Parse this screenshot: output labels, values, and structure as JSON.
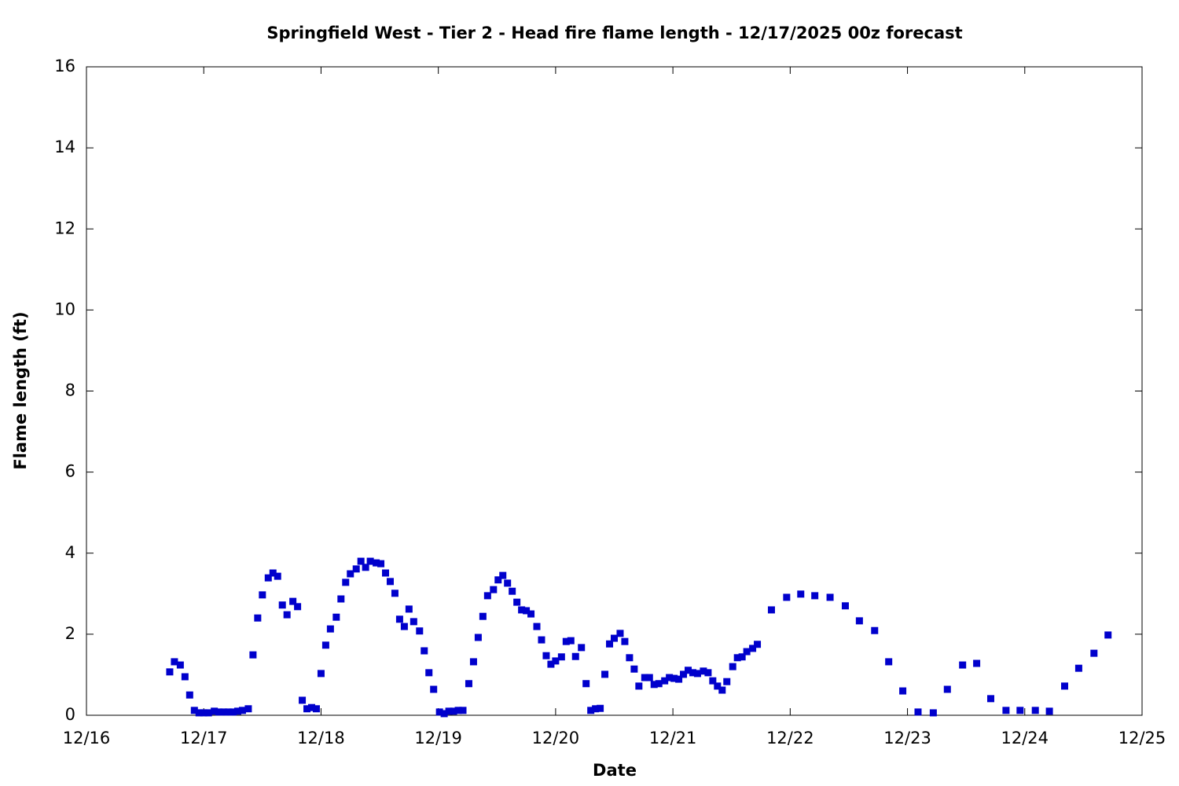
{
  "chart_data": {
    "type": "scatter",
    "title": "Springfield West - Tier 2 - Head fire flame length - 12/17/2025 00z forecast",
    "x_label": "Date",
    "y_label": "Flame length (ft)",
    "color": "#0000cc",
    "x": [
      16.71,
      16.75,
      16.8,
      16.84,
      16.88,
      16.92,
      16.96,
      17.0,
      17.04,
      17.09,
      17.13,
      17.17,
      17.21,
      17.25,
      17.29,
      17.33,
      17.38,
      17.42,
      17.46,
      17.5,
      17.55,
      17.59,
      17.63,
      17.67,
      17.71,
      17.76,
      17.8,
      17.84,
      17.88,
      17.92,
      17.96,
      18.0,
      18.04,
      18.08,
      18.13,
      18.17,
      18.21,
      18.25,
      18.3,
      18.34,
      18.38,
      18.42,
      18.47,
      18.51,
      18.55,
      18.59,
      18.63,
      18.67,
      18.71,
      18.75,
      18.79,
      18.84,
      18.88,
      18.92,
      18.96,
      19.01,
      19.05,
      19.09,
      19.13,
      19.17,
      19.21,
      19.26,
      19.3,
      19.34,
      19.38,
      19.42,
      19.47,
      19.51,
      19.55,
      19.59,
      19.63,
      19.67,
      19.71,
      19.75,
      19.79,
      19.84,
      19.88,
      19.92,
      19.96,
      20.0,
      20.05,
      20.09,
      20.13,
      20.17,
      20.22,
      20.26,
      20.3,
      20.34,
      20.38,
      20.42,
      20.46,
      20.5,
      20.55,
      20.59,
      20.63,
      20.67,
      20.71,
      20.76,
      20.8,
      20.84,
      20.88,
      20.93,
      20.97,
      21.01,
      21.05,
      21.09,
      21.13,
      21.17,
      21.21,
      21.26,
      21.3,
      21.34,
      21.38,
      21.42,
      21.46,
      21.51,
      21.55,
      21.59,
      21.63,
      21.68,
      21.72,
      21.84,
      21.97,
      22.09,
      22.21,
      22.34,
      22.47,
      22.59,
      22.72,
      22.84,
      22.96,
      23.09,
      23.22,
      23.34,
      23.47,
      23.59,
      23.71,
      23.84,
      23.96,
      24.09,
      24.21,
      24.34,
      24.46,
      24.59,
      24.71
    ],
    "values": [
      1.07,
      1.32,
      1.24,
      0.95,
      0.5,
      0.12,
      0.06,
      0.06,
      0.06,
      0.1,
      0.08,
      0.08,
      0.08,
      0.08,
      0.1,
      0.12,
      0.16,
      1.49,
      2.4,
      2.97,
      3.39,
      3.51,
      3.43,
      2.72,
      2.48,
      2.81,
      2.68,
      0.37,
      0.16,
      0.19,
      0.16,
      1.03,
      1.73,
      2.13,
      2.42,
      2.87,
      3.28,
      3.49,
      3.61,
      3.8,
      3.65,
      3.8,
      3.76,
      3.74,
      3.51,
      3.3,
      3.01,
      2.37,
      2.19,
      2.62,
      2.31,
      2.08,
      1.59,
      1.05,
      0.64,
      0.08,
      0.04,
      0.1,
      0.1,
      0.12,
      0.12,
      0.78,
      1.32,
      1.92,
      2.44,
      2.95,
      3.1,
      3.34,
      3.45,
      3.26,
      3.06,
      2.79,
      2.6,
      2.58,
      2.5,
      2.19,
      1.86,
      1.47,
      1.26,
      1.34,
      1.44,
      1.82,
      1.84,
      1.45,
      1.67,
      0.78,
      0.12,
      0.16,
      0.17,
      1.01,
      1.76,
      1.9,
      2.02,
      1.82,
      1.42,
      1.14,
      0.72,
      0.93,
      0.93,
      0.76,
      0.78,
      0.85,
      0.93,
      0.91,
      0.89,
      1.01,
      1.11,
      1.05,
      1.03,
      1.09,
      1.05,
      0.85,
      0.72,
      0.62,
      0.83,
      1.2,
      1.42,
      1.44,
      1.57,
      1.65,
      1.75,
      2.6,
      2.91,
      2.99,
      2.95,
      2.91,
      2.7,
      2.33,
      2.09,
      1.32,
      0.6,
      0.08,
      0.06,
      0.64,
      1.24,
      1.28,
      0.41,
      0.12,
      0.12,
      0.12,
      0.1,
      0.72,
      1.16,
      1.53,
      1.98
    ],
    "xlim": [
      16,
      25
    ],
    "xticks": [
      {
        "value": 16,
        "label": "12/16"
      },
      {
        "value": 17,
        "label": "12/17"
      },
      {
        "value": 18,
        "label": "12/18"
      },
      {
        "value": 19,
        "label": "12/19"
      },
      {
        "value": 20,
        "label": "12/20"
      },
      {
        "value": 21,
        "label": "12/21"
      },
      {
        "value": 22,
        "label": "12/22"
      },
      {
        "value": 23,
        "label": "12/23"
      },
      {
        "value": 24,
        "label": "12/24"
      },
      {
        "value": 25,
        "label": "12/25"
      }
    ],
    "ylim": [
      0,
      16
    ],
    "yticks": [
      0,
      2,
      4,
      6,
      8,
      10,
      12,
      14,
      16
    ],
    "grid": false
  }
}
